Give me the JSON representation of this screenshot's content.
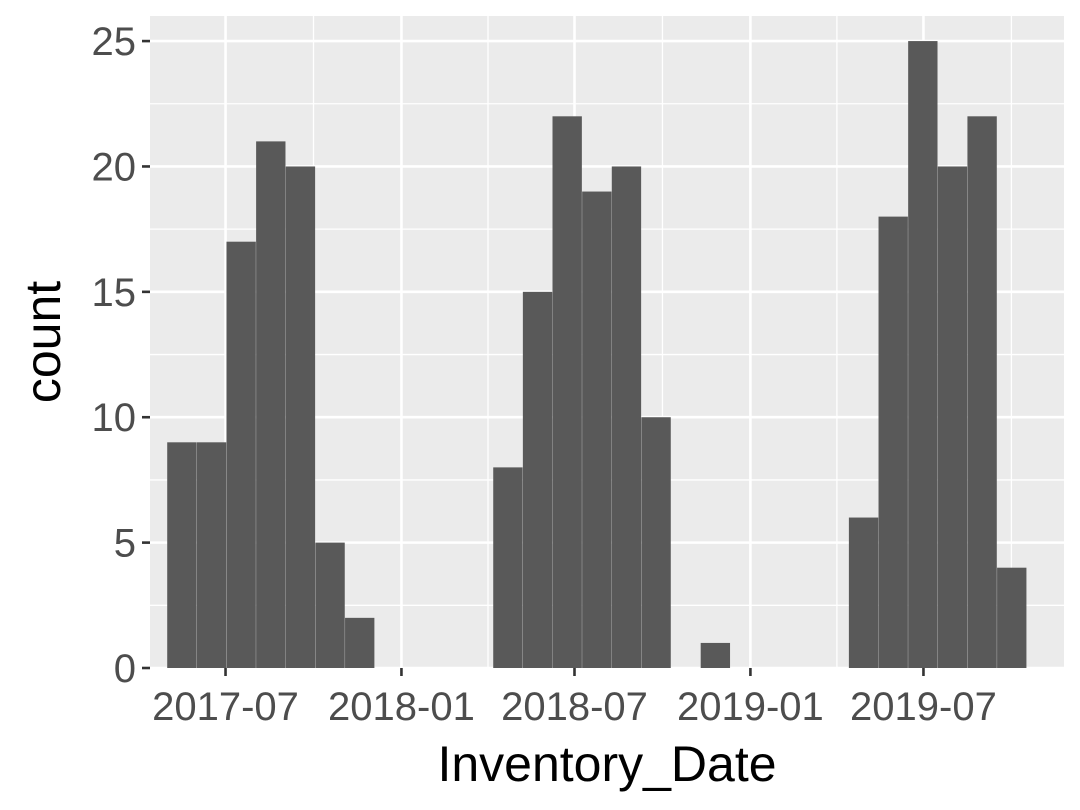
{
  "chart_data": {
    "type": "bar",
    "xlabel": "Inventory_Date",
    "ylabel": "count",
    "x_axis_type": "date",
    "bin_width_days": 30.7,
    "ylim": [
      0,
      26
    ],
    "xlim": [
      "2017-04-13",
      "2019-11-25"
    ],
    "x_ticks": [
      {
        "date": "2017-07-01",
        "label": "2017-07"
      },
      {
        "date": "2018-01-01",
        "label": "2018-01"
      },
      {
        "date": "2018-07-01",
        "label": "2018-07"
      },
      {
        "date": "2019-01-01",
        "label": "2019-01"
      },
      {
        "date": "2019-07-01",
        "label": "2019-07"
      }
    ],
    "y_ticks": [
      0,
      5,
      10,
      15,
      20,
      25
    ],
    "grid": true,
    "colors": {
      "panel": "#ebebeb",
      "grid": "#ffffff",
      "bar": "#595959",
      "tick_text": "#4d4d4d",
      "title_text": "#000000"
    },
    "bins": [
      {
        "start": "2017-05-01",
        "count": 9
      },
      {
        "start": "2017-06-01",
        "count": 9
      },
      {
        "start": "2017-07-02",
        "count": 17
      },
      {
        "start": "2017-08-02",
        "count": 21
      },
      {
        "start": "2017-09-02",
        "count": 20
      },
      {
        "start": "2017-10-03",
        "count": 5
      },
      {
        "start": "2017-11-03",
        "count": 2
      },
      {
        "start": "2017-12-04",
        "count": 0
      },
      {
        "start": "2018-01-04",
        "count": 0
      },
      {
        "start": "2018-02-04",
        "count": 0
      },
      {
        "start": "2018-03-07",
        "count": 0
      },
      {
        "start": "2018-04-07",
        "count": 8
      },
      {
        "start": "2018-05-08",
        "count": 15
      },
      {
        "start": "2018-06-08",
        "count": 22
      },
      {
        "start": "2018-07-09",
        "count": 19
      },
      {
        "start": "2018-08-09",
        "count": 20
      },
      {
        "start": "2018-09-09",
        "count": 10
      },
      {
        "start": "2018-10-10",
        "count": 0
      },
      {
        "start": "2018-11-10",
        "count": 1
      },
      {
        "start": "2018-12-11",
        "count": 0
      },
      {
        "start": "2019-01-11",
        "count": 0
      },
      {
        "start": "2019-02-11",
        "count": 0
      },
      {
        "start": "2019-03-14",
        "count": 0
      },
      {
        "start": "2019-04-14",
        "count": 6
      },
      {
        "start": "2019-05-15",
        "count": 18
      },
      {
        "start": "2019-06-15",
        "count": 25
      },
      {
        "start": "2019-07-16",
        "count": 20
      },
      {
        "start": "2019-08-16",
        "count": 22
      },
      {
        "start": "2019-09-16",
        "count": 4
      }
    ]
  }
}
